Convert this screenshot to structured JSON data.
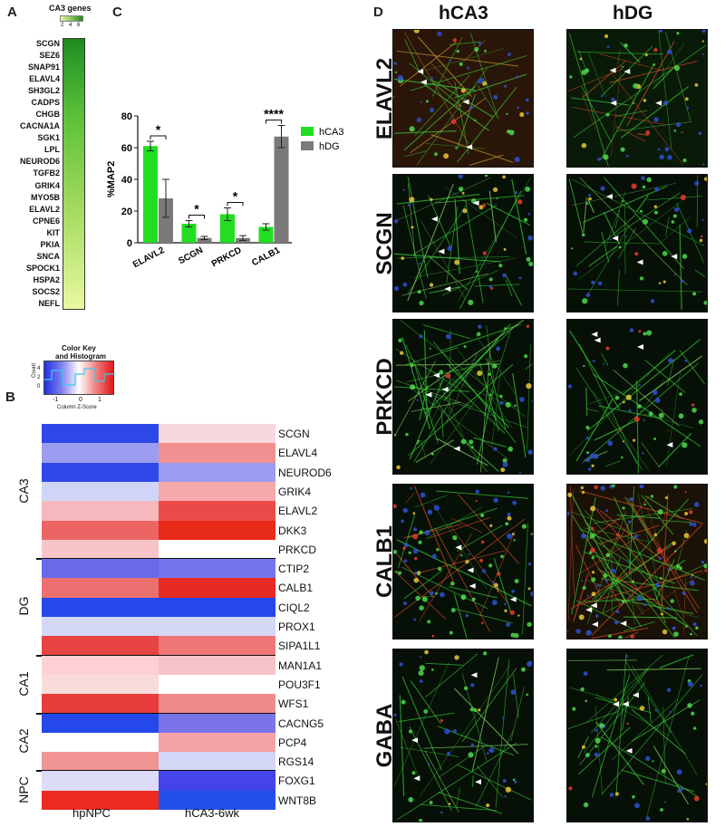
{
  "panel_letters": {
    "a": "A",
    "b": "B",
    "c": "C",
    "d": "D"
  },
  "panel_a": {
    "title": "CA3 genes",
    "scale_ticks": [
      "2",
      "4",
      "6"
    ],
    "genes": [
      "SCGN",
      "SEZ6",
      "SNAP91",
      "ELAVL4",
      "SH3GL2",
      "CADPS",
      "CHGB",
      "CACNA1A",
      "SGK1",
      "LPL",
      "NEUROD6",
      "TGFB2",
      "GRIK4",
      "MYO5B",
      "ELAVL2",
      "CPNE6",
      "KIT",
      "PKIA",
      "SNCA",
      "SPOCK1",
      "HSPA2",
      "SOCS2",
      "NEFL"
    ],
    "colors": {
      "high": "#1e8a1e",
      "low": "#e8f8a0"
    }
  },
  "panel_b": {
    "key_title_1": "Color Key",
    "key_title_2": "and Histogram",
    "key_ylabel": "Count",
    "key_xlabel": "Column Z-Score",
    "key_yticks": [
      "0",
      "2",
      "4"
    ],
    "key_xticks": [
      "-1",
      "0",
      "1"
    ],
    "columns": [
      "hpNPC",
      "hCA3-6wk"
    ],
    "groups": [
      {
        "name": "CA3",
        "genes": [
          "SCGN",
          "ELAVL4",
          "NEUROD6",
          "GRIK4",
          "ELAVL2",
          "DKK3",
          "PRKCD"
        ]
      },
      {
        "name": "DG",
        "genes": [
          "CTIP2",
          "CALB1",
          "CIQL2",
          "PROX1",
          "SIPA1L1"
        ]
      },
      {
        "name": "CA1",
        "genes": [
          "MAN1A1",
          "POU3F1",
          "WFS1"
        ]
      },
      {
        "name": "CA2",
        "genes": [
          "CACNG5",
          "PCP4",
          "RGS14"
        ]
      },
      {
        "name": "NPC",
        "genes": [
          "FOXG1",
          "WNT8B"
        ]
      }
    ],
    "cells": [
      [
        "#2e48e8",
        "#f8d8dc"
      ],
      [
        "#9c9cf0",
        "#f09090"
      ],
      [
        "#2e48e8",
        "#9c9cf0"
      ],
      [
        "#d0d4f6",
        "#f4aaaa"
      ],
      [
        "#f6b8bc",
        "#ec4a48"
      ],
      [
        "#ec6464",
        "#e82a18"
      ],
      [
        "#f8c4c8",
        "#ffffff"
      ],
      [
        "#6a6ae8",
        "#7474ec"
      ],
      [
        "#ec7070",
        "#e82a24"
      ],
      [
        "#2448ea",
        "#2448ea"
      ],
      [
        "#d4d8f6",
        "#d4d8f6"
      ],
      [
        "#e84444",
        "#f07676"
      ],
      [
        "#fcd0d4",
        "#f6c4c8"
      ],
      [
        "#f8dcdc",
        "#ffffff"
      ],
      [
        "#e83c3c",
        "#f08a8a"
      ],
      [
        "#2448ea",
        "#7a74e8"
      ],
      [
        "#ffffff",
        "#f4a4a4"
      ],
      [
        "#f09494",
        "#d4d6f6"
      ],
      [
        "#dcdcf6",
        "#4444ea"
      ],
      [
        "#ec2a20",
        "#2450ea"
      ]
    ]
  },
  "chart_data": {
    "type": "bar",
    "categories": [
      "ELAVL2",
      "SCGN",
      "PRKCD",
      "CALB1"
    ],
    "ylabel": "%MAP2",
    "ylim": [
      0,
      80
    ],
    "yticks": [
      0,
      20,
      40,
      60,
      80
    ],
    "series": [
      {
        "name": "hCA3",
        "color": "#22dd22",
        "values": [
          61,
          12,
          18,
          10
        ],
        "errors": [
          3,
          2,
          4,
          2
        ]
      },
      {
        "name": "hDG",
        "color": "#7a7a7a",
        "values": [
          28,
          3,
          3,
          67
        ],
        "errors": [
          12,
          1,
          1.5,
          7
        ]
      }
    ],
    "significance": [
      "*",
      "*",
      "*",
      "****"
    ]
  },
  "panel_d": {
    "columns": [
      "hCA3",
      "hDG"
    ],
    "rows": [
      "ELAVL2",
      "SCGN",
      "PRKCD",
      "CALB1",
      "GABA"
    ]
  }
}
